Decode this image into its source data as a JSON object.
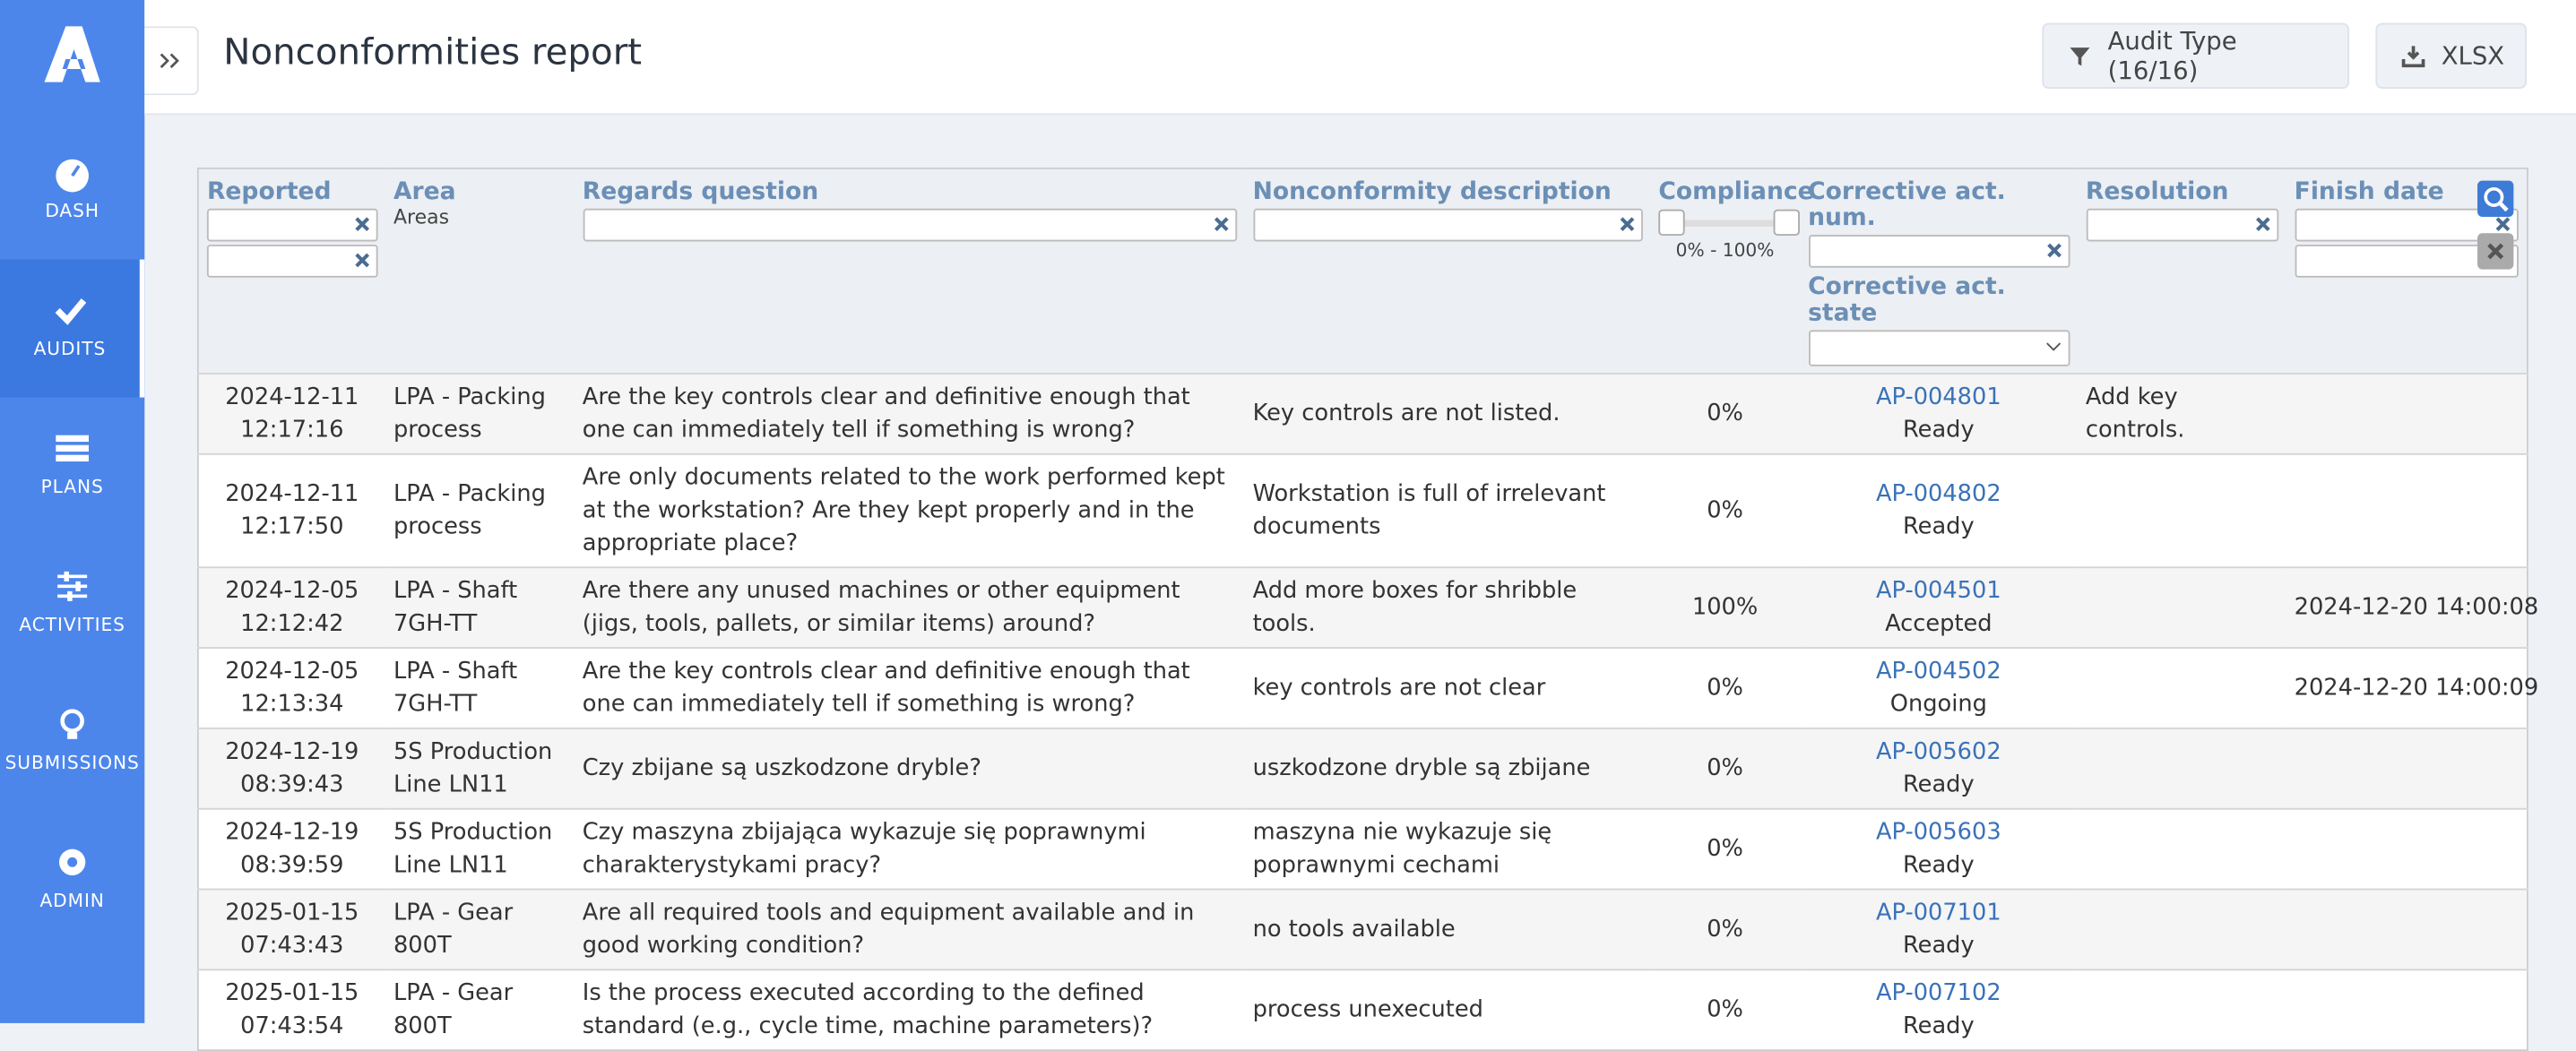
{
  "nav": [
    {
      "label": "DASH"
    },
    {
      "label": "AUDITS",
      "active": true
    },
    {
      "label": "PLANS"
    },
    {
      "label": "ACTIVITIES"
    },
    {
      "label": "SUBMISSIONS"
    },
    {
      "label": "ADMIN"
    }
  ],
  "header": {
    "title": "Nonconformities report",
    "filter_button": "Audit Type (16/16)",
    "export_button": "XLSX"
  },
  "table": {
    "columns": [
      "Reported",
      "Area",
      "Regards question",
      "Nonconformity description",
      "Compliance",
      "Corrective act. num.",
      "Resolution",
      "Finish date"
    ],
    "extra_column": "Corrective act. state",
    "area_filter": "Areas",
    "compliance_filter": "0% - 100%",
    "rows": [
      [
        "2024-12-11 12:17:16",
        "LPA - Packing process",
        "Are the key controls clear and definitive enough that one can immediately tell if something is wrong?",
        "Key controls are not listed.",
        "0%",
        "AP-004801",
        "Ready",
        "Add key controls.",
        ""
      ],
      [
        "2024-12-11 12:17:50",
        "LPA - Packing process",
        "Are only documents related to the work performed kept at the workstation? Are they kept properly and in the appropriate place?",
        "Workstation is full of irrelevant documents",
        "0%",
        "AP-004802",
        "Ready",
        "",
        ""
      ],
      [
        "2024-12-05 12:12:42",
        "LPA - Shaft 7GH-TT",
        "Are there any unused machines or other equipment (jigs, tools, pallets, or similar items) around?",
        "Add more boxes for shribble tools.",
        "100%",
        "AP-004501",
        "Accepted",
        "",
        "2024-12-20 14:00:08"
      ],
      [
        "2024-12-05 12:13:34",
        "LPA - Shaft 7GH-TT",
        "Are the key controls clear and definitive enough that one can immediately tell if something is wrong?",
        "key controls are not clear",
        "0%",
        "AP-004502",
        "Ongoing",
        "",
        "2024-12-20 14:00:09"
      ],
      [
        "2024-12-19 08:39:43",
        "5S Production Line LN11",
        "Czy zbijane są uszkodzone dryble?",
        "uszkodzone dryble są zbijane",
        "0%",
        "AP-005602",
        "Ready",
        "",
        ""
      ],
      [
        "2024-12-19 08:39:59",
        "5S Production Line LN11",
        "Czy maszyna zbijająca wykazuje się poprawnymi charakterystykami pracy?",
        "maszyna nie wykazuje się poprawnymi cechami",
        "0%",
        "AP-005603",
        "Ready",
        "",
        ""
      ],
      [
        "2025-01-15 07:43:43",
        "LPA - Gear 800T",
        "Are all required tools and equipment available and in good working condition?",
        "no tools available",
        "0%",
        "AP-007101",
        "Ready",
        "",
        ""
      ],
      [
        "2025-01-15 07:43:54",
        "LPA - Gear 800T",
        "Is the process executed according to the defined standard (e.g., cycle time, machine parameters)?",
        "process unexecuted",
        "0%",
        "AP-007102",
        "Ready",
        "",
        ""
      ]
    ]
  }
}
